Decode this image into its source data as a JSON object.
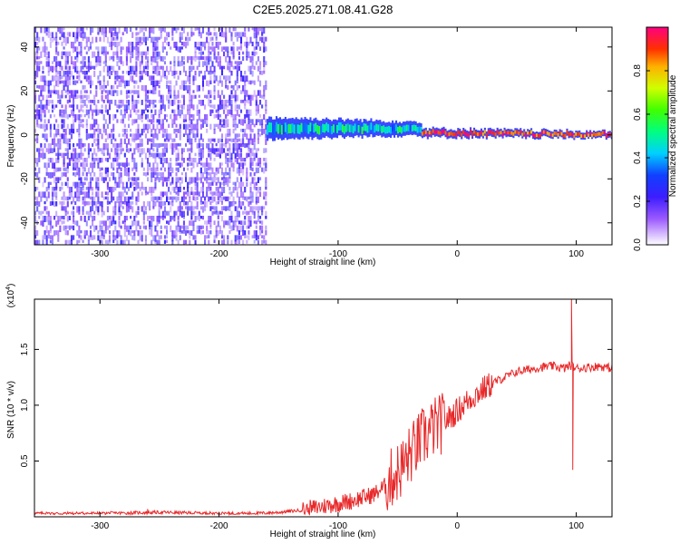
{
  "figure": {
    "title": "C2E5.2025.271.08.41.G28"
  },
  "chart_data": [
    {
      "type": "heatmap",
      "xlabel": "Height of straight line (km)",
      "ylabel": "Frequency (Hz)",
      "xlim": [
        -355,
        130
      ],
      "ylim": [
        -50,
        49
      ],
      "xticks": [
        -300,
        -200,
        -100,
        0,
        100
      ],
      "xtick_labels": [
        "-300",
        "-200",
        "-100",
        "0",
        "100"
      ],
      "yticks": [
        -40,
        -20,
        0,
        20,
        40
      ],
      "ytick_labels": [
        "-40",
        "-20",
        "0",
        "20",
        "40"
      ],
      "colorbar": {
        "label": "Normalized spectral amplitude",
        "range": [
          0,
          1
        ],
        "ticks": [
          0.0,
          0.2,
          0.4,
          0.6,
          0.8
        ],
        "tick_labels": [
          "0.0",
          "0.2",
          "0.4",
          "0.6",
          "0.8"
        ]
      },
      "regions": [
        {
          "x_range": [
            -355,
            -160
          ],
          "freq_range": [
            -50,
            49
          ],
          "pattern": "noise",
          "amplitude": [
            0.1,
            0.25
          ]
        },
        {
          "x_range": [
            -160,
            -30
          ],
          "freq_center": [
            3,
            3
          ],
          "freq_halfwidth": [
            5,
            3
          ],
          "pattern": "signal",
          "amplitude": [
            0.3,
            0.6
          ]
        },
        {
          "x_range": [
            -30,
            130
          ],
          "freq_center": [
            1,
            0
          ],
          "freq_halfwidth": [
            2,
            1.5
          ],
          "pattern": "signal",
          "amplitude": [
            0.8,
            1.0
          ]
        }
      ]
    },
    {
      "type": "line",
      "xlabel": "Height of straight line (km)",
      "ylabel": "SNR (10 * v/v)",
      "y_multiplier": "(x10",
      "y_multiplier_exp": "4",
      "y_multiplier_close": ")",
      "xlim": [
        -355,
        130
      ],
      "ylim": [
        0,
        1.95
      ],
      "xticks": [
        -300,
        -200,
        -100,
        0,
        100
      ],
      "xtick_labels": [
        "-300",
        "-200",
        "-100",
        "0",
        "100"
      ],
      "yticks": [
        0.5,
        1.0,
        1.5
      ],
      "ytick_labels": [
        "0.5",
        "1.0",
        "1.5"
      ],
      "series": [
        {
          "color": "#e8292a",
          "x": [
            -355,
            -300,
            -250,
            -200,
            -170,
            -150,
            -130,
            -120,
            -110,
            -100,
            -90,
            -80,
            -70,
            -60,
            -55,
            -50,
            -45,
            -40,
            -35,
            -30,
            -25,
            -20,
            -15,
            -10,
            -5,
            0,
            5,
            10,
            20,
            30,
            40,
            50,
            60,
            70,
            80,
            90,
            95,
            100,
            110,
            120,
            130
          ],
          "y": [
            0.03,
            0.03,
            0.04,
            0.03,
            0.03,
            0.04,
            0.06,
            0.08,
            0.1,
            0.12,
            0.14,
            0.17,
            0.2,
            0.28,
            0.35,
            0.4,
            0.46,
            0.55,
            0.62,
            0.7,
            0.74,
            0.8,
            0.82,
            0.86,
            0.9,
            0.95,
            1.0,
            1.05,
            1.13,
            1.2,
            1.25,
            1.3,
            1.32,
            1.34,
            1.35,
            1.33,
            1.36,
            1.33,
            1.34,
            1.35,
            1.33
          ],
          "spikes": [
            {
              "x": 96,
              "y": 1.95
            },
            {
              "x": 97,
              "y": 0.42
            },
            {
              "x": -260,
              "y": 0.07
            }
          ]
        }
      ]
    }
  ]
}
